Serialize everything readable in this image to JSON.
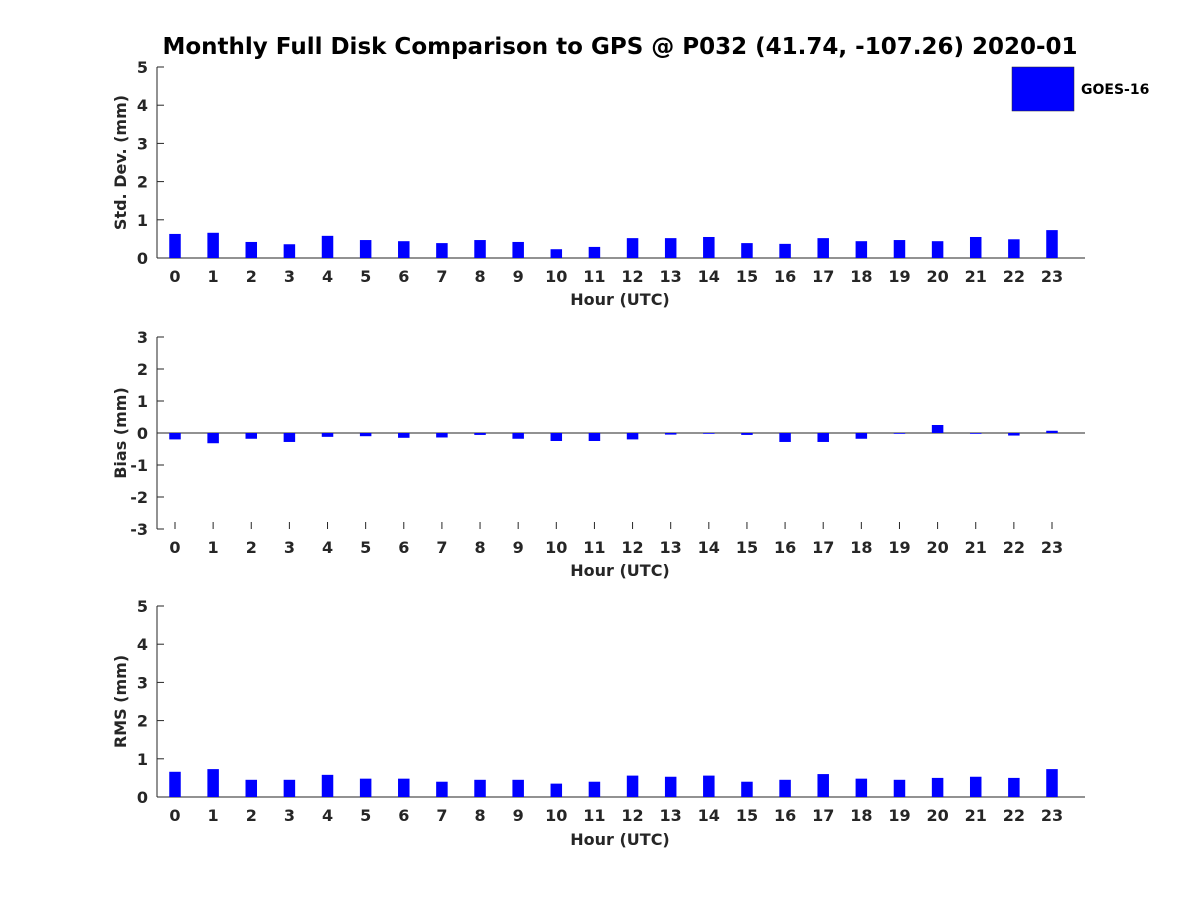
{
  "chart_data": [
    {
      "type": "bar",
      "title": "Monthly Full Disk Comparison to GPS @ P032 (41.74, -107.26) 2020-01",
      "xlabel": "Hour (UTC)",
      "ylabel": "Std. Dev. (mm)",
      "ylim": [
        0,
        5
      ],
      "yticks": [
        "0",
        "1",
        "2",
        "3",
        "4",
        "5"
      ],
      "categories": [
        "0",
        "1",
        "2",
        "3",
        "4",
        "5",
        "6",
        "7",
        "8",
        "9",
        "10",
        "11",
        "12",
        "13",
        "14",
        "15",
        "16",
        "17",
        "18",
        "19",
        "20",
        "21",
        "22",
        "23"
      ],
      "legend_position": "top-right",
      "series": [
        {
          "name": "GOES-16",
          "color": "#0000ff",
          "values": [
            0.63,
            0.66,
            0.42,
            0.36,
            0.58,
            0.47,
            0.44,
            0.39,
            0.47,
            0.42,
            0.23,
            0.29,
            0.52,
            0.52,
            0.55,
            0.39,
            0.37,
            0.52,
            0.44,
            0.47,
            0.44,
            0.55,
            0.49,
            0.73
          ]
        }
      ]
    },
    {
      "type": "bar",
      "xlabel": "Hour (UTC)",
      "ylabel": "Bias (mm)",
      "ylim": [
        -3,
        3
      ],
      "yticks": [
        "-3",
        "-2",
        "-1",
        "0",
        "1",
        "2",
        "3"
      ],
      "categories": [
        "0",
        "1",
        "2",
        "3",
        "4",
        "5",
        "6",
        "7",
        "8",
        "9",
        "10",
        "11",
        "12",
        "13",
        "14",
        "15",
        "16",
        "17",
        "18",
        "19",
        "20",
        "21",
        "22",
        "23"
      ],
      "series": [
        {
          "name": "GOES-16",
          "color": "#0000ff",
          "values": [
            -0.2,
            -0.32,
            -0.18,
            -0.28,
            -0.12,
            -0.1,
            -0.15,
            -0.14,
            -0.06,
            -0.18,
            -0.25,
            -0.25,
            -0.2,
            -0.05,
            -0.02,
            -0.06,
            -0.28,
            -0.28,
            -0.18,
            -0.02,
            0.25,
            -0.02,
            -0.08,
            0.07
          ]
        }
      ]
    },
    {
      "type": "bar",
      "xlabel": "Hour (UTC)",
      "ylabel": "RMS (mm)",
      "ylim": [
        0,
        5
      ],
      "yticks": [
        "0",
        "1",
        "2",
        "3",
        "4",
        "5"
      ],
      "categories": [
        "0",
        "1",
        "2",
        "3",
        "4",
        "5",
        "6",
        "7",
        "8",
        "9",
        "10",
        "11",
        "12",
        "13",
        "14",
        "15",
        "16",
        "17",
        "18",
        "19",
        "20",
        "21",
        "22",
        "23"
      ],
      "series": [
        {
          "name": "GOES-16",
          "color": "#0000ff",
          "values": [
            0.66,
            0.73,
            0.45,
            0.45,
            0.58,
            0.48,
            0.48,
            0.4,
            0.45,
            0.45,
            0.35,
            0.4,
            0.56,
            0.53,
            0.56,
            0.4,
            0.45,
            0.6,
            0.48,
            0.45,
            0.5,
            0.53,
            0.5,
            0.73
          ]
        }
      ]
    }
  ]
}
